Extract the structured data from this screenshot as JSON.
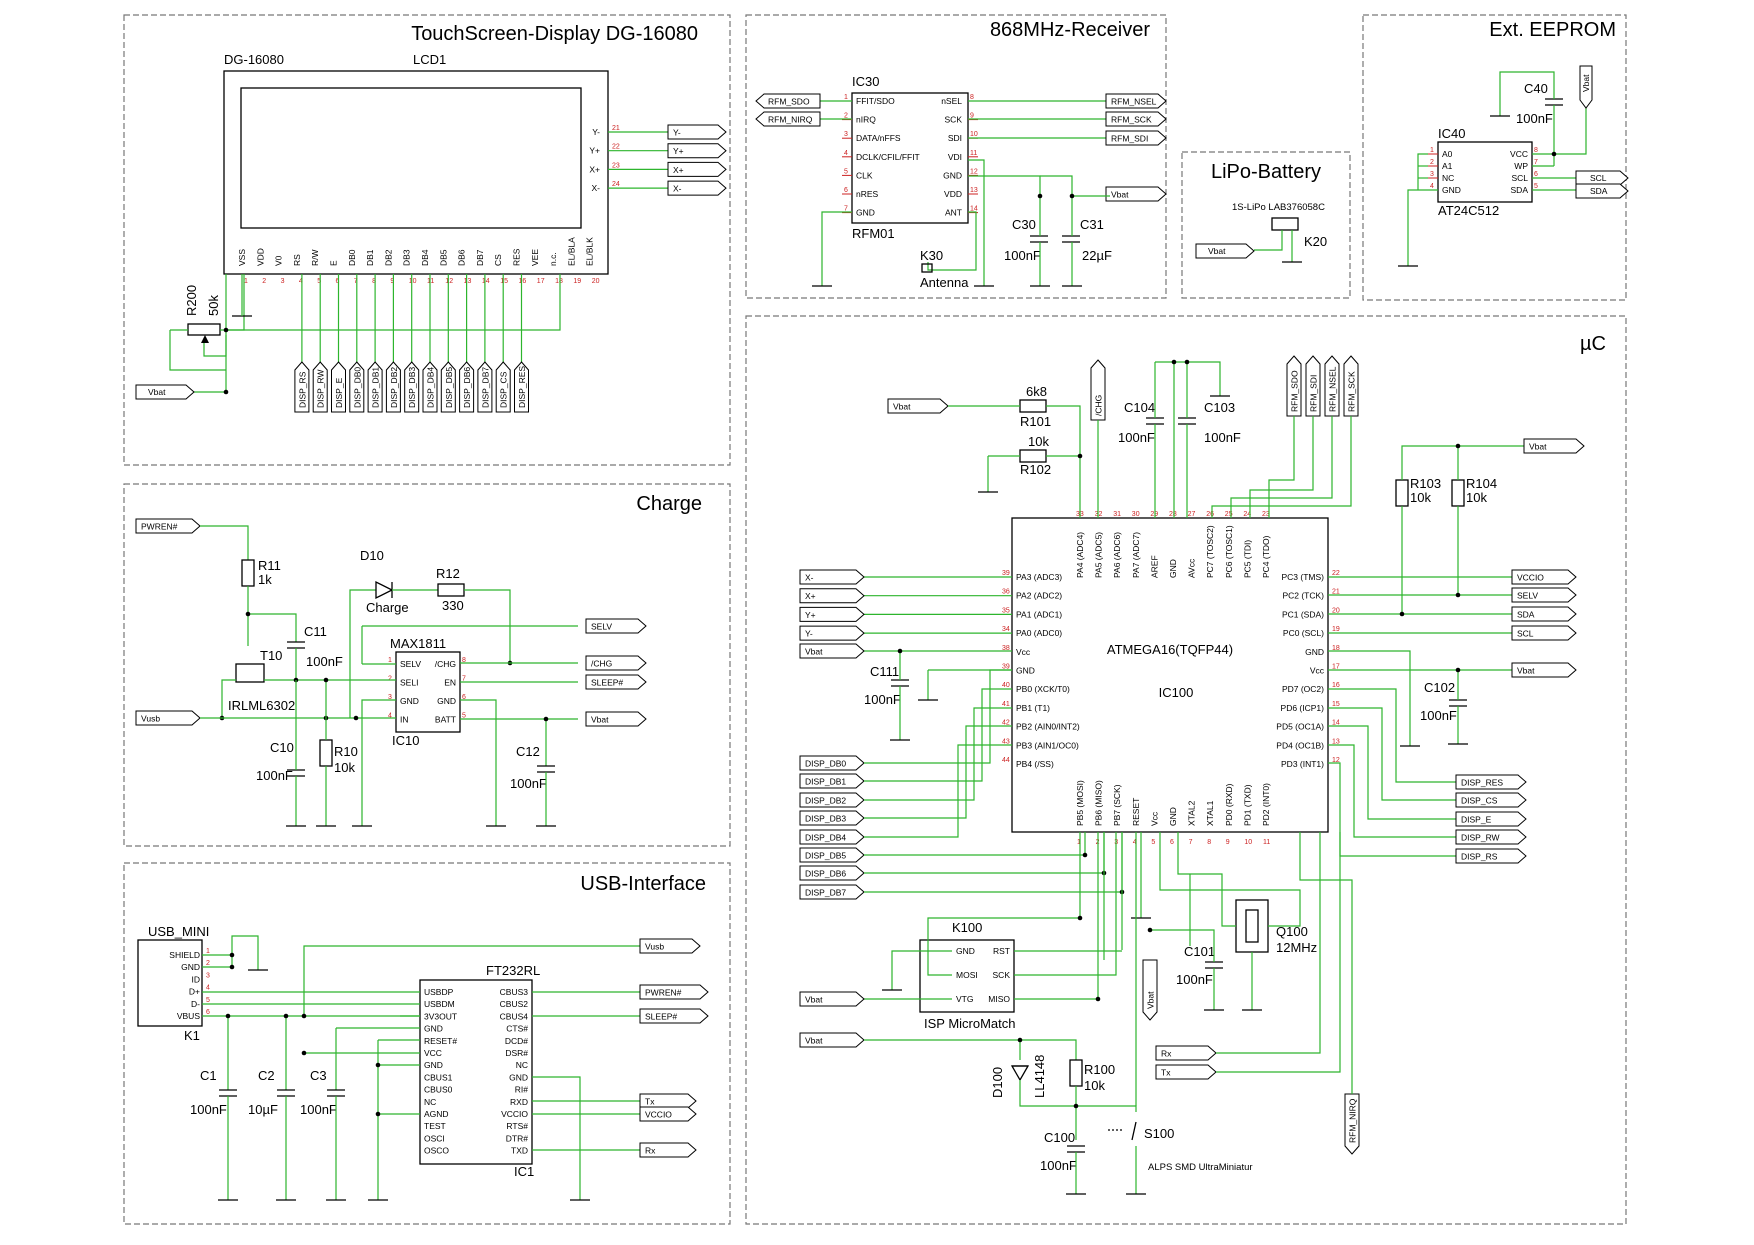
{
  "sections": {
    "display": "TouchScreen-Display DG-16080",
    "receiver": "868MHz-Receiver",
    "eeprom": "Ext. EEPROM",
    "battery": "LiPo-Battery",
    "uc": "µC",
    "charge": "Charge",
    "usb": "USB-Interface"
  },
  "display": {
    "part": "DG-16080",
    "name": "LCD1",
    "pins": [
      "VSS",
      "VDD",
      "V0",
      "RS",
      "R/W",
      "E",
      "DB0",
      "DB1",
      "DB2",
      "DB3",
      "DB4",
      "DB5",
      "DB6",
      "DB7",
      "CS",
      "RES",
      "VEE",
      "n.c.",
      "EL/BLA",
      "EL/BLK"
    ],
    "touch_pins": [
      "Y-",
      "Y+",
      "X+",
      "X-"
    ],
    "touch_flags": [
      "Y-",
      "Y+",
      "X+",
      "X-"
    ],
    "pot": {
      "ref": "R200",
      "value": "50k"
    },
    "vbat": "Vbat",
    "bus_flags": [
      "DISP_RS",
      "DISP_RW",
      "DISP_E",
      "DISP_DB0",
      "DISP_DB1",
      "DISP_DB2",
      "DISP_DB3",
      "DISP_DB4",
      "DISP_DB5",
      "DISP_DB6",
      "DISP_DB7",
      "DISP_CS",
      "DISP_RES"
    ]
  },
  "receiver": {
    "ref": "IC30",
    "part": "RFM01",
    "left_pins": [
      "FFIT/SDO",
      "nIRQ",
      "DATA/nFFS",
      "DCLK/CFIL/FFIT",
      "CLK",
      "nRES",
      "GND"
    ],
    "right_pins": [
      "nSEL",
      "SCK",
      "SDI",
      "VDI",
      "GND",
      "VDD",
      "ANT"
    ],
    "left_flags": [
      "RFM_SDO",
      "RFM_NIRQ"
    ],
    "right_flags": [
      "RFM_NSEL",
      "RFM_SCK",
      "RFM_SDI",
      "Vbat"
    ],
    "c30": {
      "ref": "C30",
      "value": "100nF"
    },
    "c31": {
      "ref": "C31",
      "value": "22µF"
    },
    "antenna": {
      "ref": "K30",
      "value": "Antenna"
    }
  },
  "eeprom": {
    "ref": "IC40",
    "part": "AT24C512",
    "left_pins": [
      "A0",
      "A1",
      "NC",
      "GND"
    ],
    "right_pins": [
      "VCC",
      "WP",
      "SCL",
      "SDA"
    ],
    "cap": {
      "ref": "C40",
      "value": "100nF"
    },
    "flags": [
      "Vbat",
      "SCL",
      "SDA"
    ]
  },
  "battery": {
    "part": "1S-LiPo LAB376058C",
    "ref": "K20",
    "flag": "Vbat"
  },
  "uc": {
    "ref": "IC100",
    "part": "ATMEGA16(TQFP44)",
    "top_pins": [
      "PA4 (ADC4)",
      "PA5 (ADC5)",
      "PA6 (ADC6)",
      "PA7 (ADC7)",
      "AREF",
      "GND",
      "AVcc",
      "PC7 (TOSC2)",
      "PC6 (TOSC1)",
      "PC5 (TDI)",
      "PC4 (TDO)"
    ],
    "left_pins": [
      "PA3 (ADC3)",
      "PA2 (ADC2)",
      "PA1 (ADC1)",
      "PA0 (ADC0)",
      "Vcc",
      "GND",
      "PB0 (XCK/T0)",
      "PB1 (T1)",
      "PB2 (AIN0/INT2)",
      "PB3 (AIN1/OC0)",
      "PB4 (/SS)"
    ],
    "right_pins": [
      "PC3 (TMS)",
      "PC2 (TCK)",
      "PC1 (SDA)",
      "PC0 (SCL)",
      "GND",
      "Vcc",
      "PD7 (OC2)",
      "PD6 (ICP1)",
      "PD5 (OC1A)",
      "PD4 (OC1B)",
      "PD3 (INT1)"
    ],
    "bottom_pins": [
      "PB5 (MOSI)",
      "PB6 (MISO)",
      "PB7 (SCK)",
      "RESET",
      "Vcc",
      "GND",
      "XTAL2",
      "XTAL1",
      "PD0 (RXD)",
      "PD1 (TXD)",
      "PD2 (INT0)"
    ],
    "left_flags": [
      "X-",
      "X+",
      "Y+",
      "Y-",
      "Vbat"
    ],
    "db_flags": [
      "DISP_DB0",
      "DISP_DB1",
      "DISP_DB2",
      "DISP_DB3",
      "DISP_DB4",
      "DISP_DB5",
      "DISP_DB6",
      "DISP_DB7"
    ],
    "right_flags": [
      "VCCIO",
      "SELV",
      "SDA",
      "SCL",
      "Vbat"
    ],
    "ctrl_flags": [
      "DISP_RES",
      "DISP_CS",
      "DISP_E",
      "DISP_RW",
      "DISP_RS"
    ],
    "top_flags": [
      "/CHG",
      "RFM_SDO",
      "RFM_SDI",
      "RFM_NSEL",
      "RFM_SCK",
      "Vbat",
      "RFM_NIRQ"
    ],
    "r101": {
      "ref": "R101",
      "value": "6k8"
    },
    "r102": {
      "ref": "R102",
      "value": "10k"
    },
    "c104": {
      "ref": "C104",
      "value": "100nF"
    },
    "c103": {
      "ref": "C103",
      "value": "100nF"
    },
    "r103": {
      "ref": "R103",
      "value": "10k"
    },
    "r104": {
      "ref": "R104",
      "value": "10k"
    },
    "c111": {
      "ref": "C111",
      "value": "100nF"
    },
    "c102": {
      "ref": "C102",
      "value": "100nF"
    },
    "c101": {
      "ref": "C101",
      "value": "100nF"
    },
    "crystal": {
      "ref": "Q100",
      "value": "12MHz"
    },
    "isp": {
      "ref": "K100",
      "name": "ISP MicroMatch",
      "pins_left": [
        "GND",
        "MOSI",
        "VTG"
      ],
      "pins_right": [
        "RST",
        "SCK",
        "MISO"
      ]
    },
    "rxtx_flags": [
      "Rx",
      "Tx"
    ],
    "d100": {
      "ref": "D100",
      "value": "LL4148"
    },
    "r100": {
      "ref": "R100",
      "value": "10k"
    },
    "c100": {
      "ref": "C100",
      "value": "100nF"
    },
    "switch": {
      "ref": "S100",
      "value": "ALPS SMD UltraMiniatur"
    }
  },
  "charge": {
    "ic": {
      "ref": "IC10",
      "part": "MAX1811",
      "left_pins": [
        "SELV",
        "SELI",
        "GND",
        "IN"
      ],
      "right_pins": [
        "/CHG",
        "EN",
        "GND",
        "BATT"
      ]
    },
    "r11": {
      "ref": "R11",
      "value": "1k"
    },
    "c11": {
      "ref": "C11",
      "value": "100nF"
    },
    "t10": {
      "ref": "T10",
      "value": "IRLML6302"
    },
    "d10": {
      "ref": "D10",
      "value": "Charge"
    },
    "r12": {
      "ref": "R12",
      "value": "330"
    },
    "c10": {
      "ref": "C10",
      "value": "100nF"
    },
    "r10": {
      "ref": "R10",
      "value": "10k"
    },
    "c12": {
      "ref": "C12",
      "value": "100nF"
    },
    "flags": [
      "PWREN#",
      "Vusb",
      "SELV",
      "/CHG",
      "SLEEP#",
      "Vbat"
    ]
  },
  "usb": {
    "conn": {
      "ref": "K1",
      "name": "USB_MINI",
      "pins": [
        "SHIELD",
        "GND",
        "ID",
        "D+",
        "D-",
        "VBUS"
      ]
    },
    "ic": {
      "ref": "IC1",
      "part": "FT232RL",
      "left_pins": [
        "USBDP",
        "USBDM",
        "3V3OUT",
        "GND",
        "RESET#",
        "VCC",
        "GND",
        "CBUS1",
        "CBUS0",
        "NC",
        "AGND",
        "TEST",
        "OSCI",
        "OSCO"
      ],
      "right_pins": [
        "CBUS3",
        "CBUS2",
        "CBUS4",
        "CTS#",
        "DCD#",
        "DSR#",
        "NC",
        "GND",
        "RI#",
        "RXD",
        "VCCIO",
        "RTS#",
        "DTR#",
        "TXD"
      ]
    },
    "c1": {
      "ref": "C1",
      "value": "100nF"
    },
    "c2": {
      "ref": "C2",
      "value": "10µF"
    },
    "c3": {
      "ref": "C3",
      "value": "100nF"
    },
    "flags": [
      "Vusb",
      "PWREN#",
      "SLEEP#",
      "Tx",
      "VCCIO",
      "Rx"
    ]
  }
}
